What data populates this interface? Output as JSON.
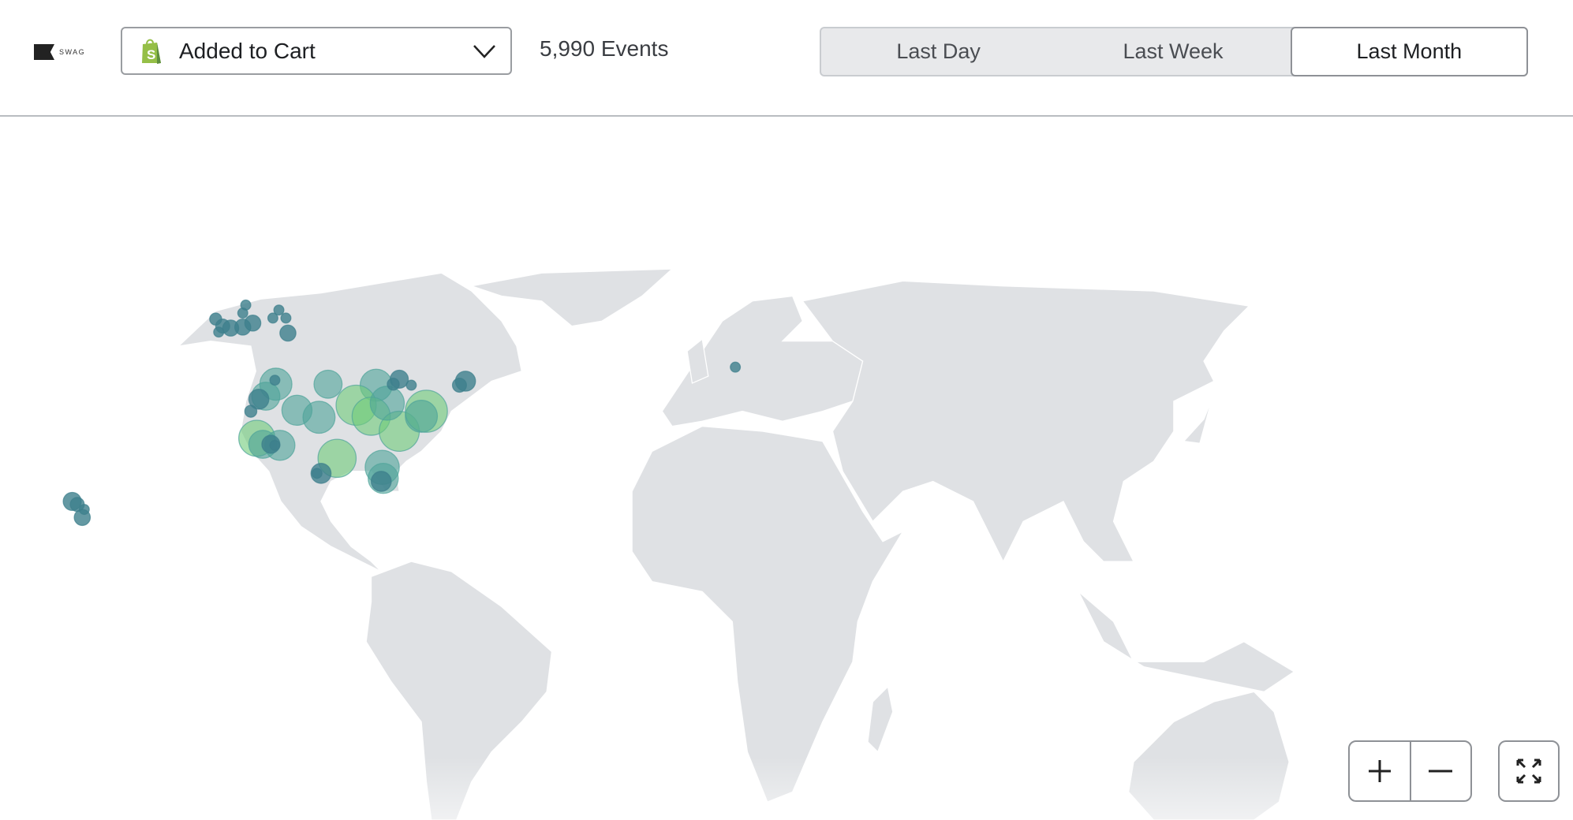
{
  "header": {
    "logo_text": "SWAG",
    "event_select": {
      "selected": "Added to Cart",
      "icon": "shopify-bag-icon"
    },
    "event_count": "5,990 Events",
    "time_ranges": [
      {
        "label": "Last Day",
        "active": false
      },
      {
        "label": "Last Week",
        "active": false
      },
      {
        "label": "Last Month",
        "active": true
      }
    ]
  },
  "map": {
    "colors": {
      "land": "#dfe1e4",
      "border": "#ffffff",
      "marker_low": "#3d7f8c",
      "marker_mid": "#4fa49a",
      "marker_high": "#6fcb7a",
      "shopify_green": "#95bf47"
    },
    "controls": {
      "zoom_in_icon": "plus-icon",
      "zoom_out_icon": "minus-icon",
      "fullscreen_icon": "expand-icon"
    }
  }
}
